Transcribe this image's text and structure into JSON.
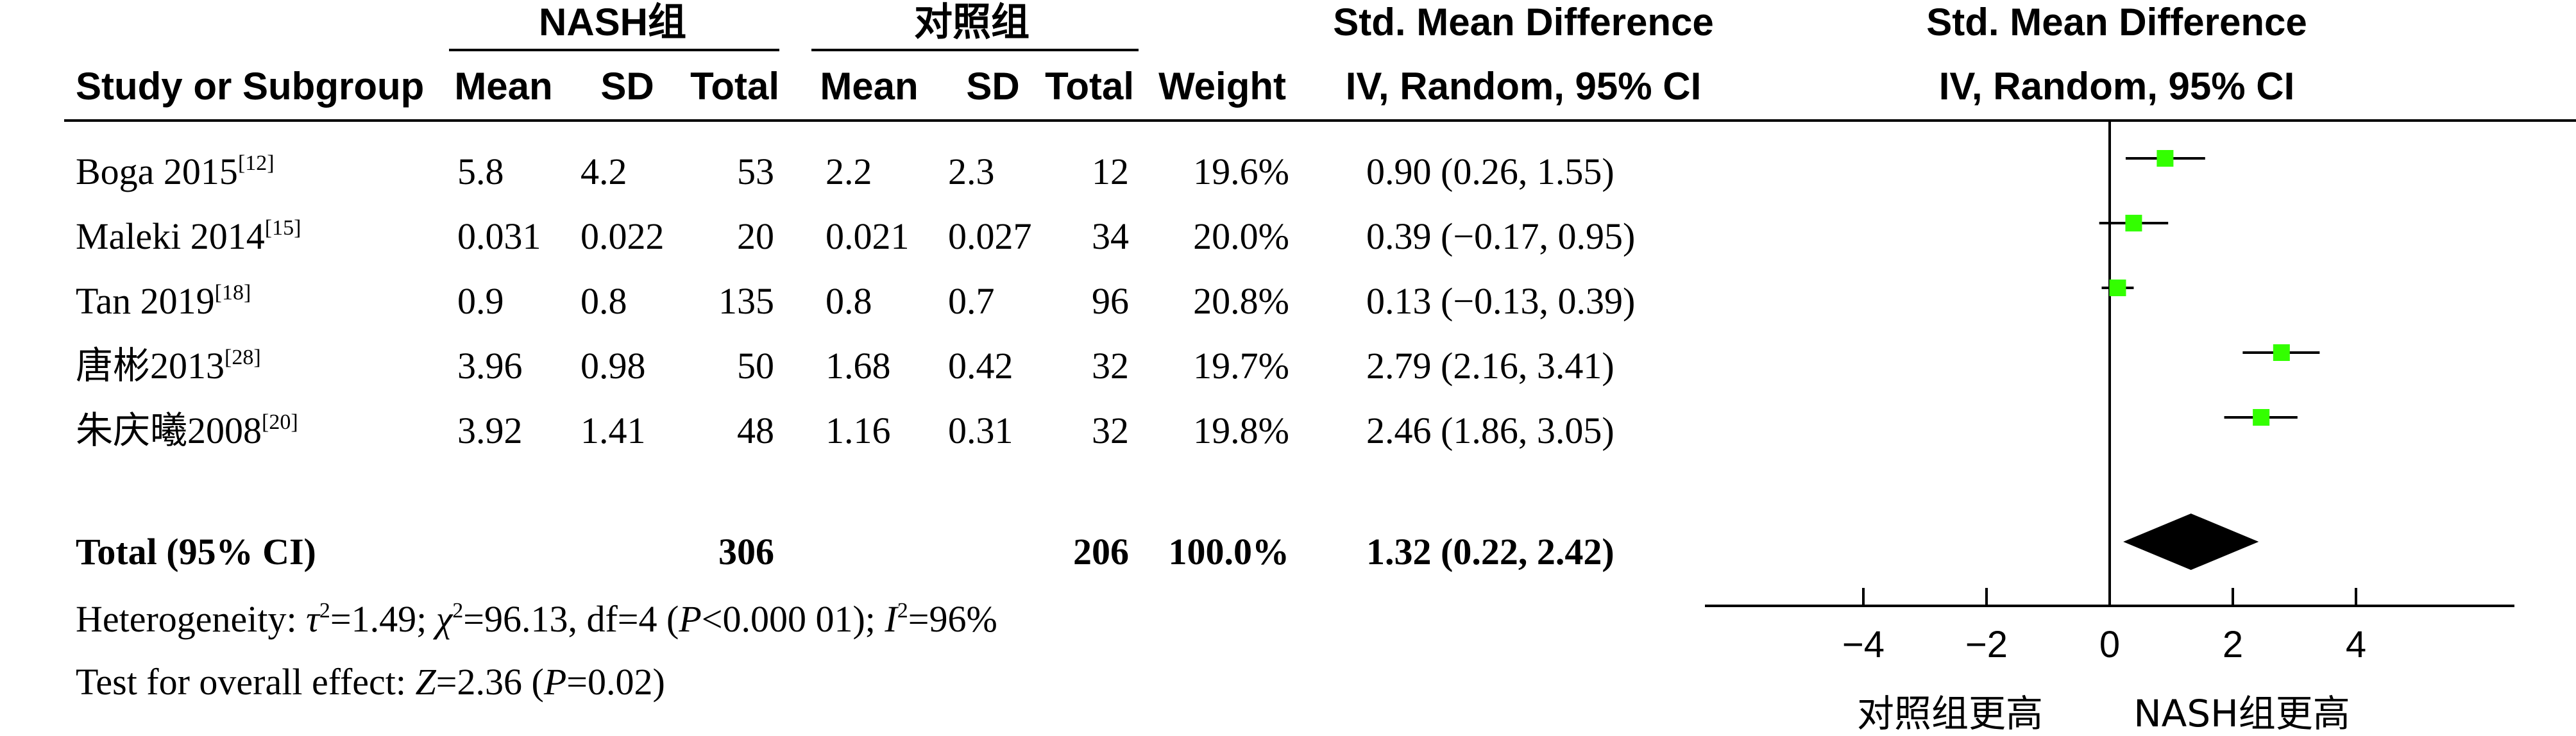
{
  "headers": {
    "group1": "NASH组",
    "group2": "对照组",
    "smd_title": "Std. Mean Difference",
    "study": "Study or Subgroup",
    "mean1": "Mean",
    "sd1": "SD",
    "total1": "Total",
    "mean2": "Mean",
    "sd2": "SD",
    "total2": "Total",
    "weight": "Weight",
    "smd_method": "IV, Random, 95% CI",
    "plot_title": "Std. Mean Difference",
    "plot_method": "IV, Random, 95% CI"
  },
  "studies": [
    {
      "name": "Boga 2015",
      "ref": "[12]",
      "mean1": "5.8",
      "sd1": "4.2",
      "total1": "53",
      "mean2": "2.2",
      "sd2": "2.3",
      "total2": "12",
      "weight": "19.6%",
      "ci_text": "0.90 (0.26, 1.55)"
    },
    {
      "name": "Maleki 2014",
      "ref": "[15]",
      "mean1": "0.031",
      "sd1": "0.022",
      "total1": "20",
      "mean2": "0.021",
      "sd2": "0.027",
      "total2": "34",
      "weight": "20.0%",
      "ci_text": "0.39 (−0.17, 0.95)"
    },
    {
      "name": "Tan 2019",
      "ref": "[18]",
      "mean1": "0.9",
      "sd1": "0.8",
      "total1": "135",
      "mean2": "0.8",
      "sd2": "0.7",
      "total2": "96",
      "weight": "20.8%",
      "ci_text": "0.13 (−0.13, 0.39)"
    },
    {
      "name": "唐彬2013",
      "ref": "[28]",
      "mean1": "3.96",
      "sd1": "0.98",
      "total1": "50",
      "mean2": "1.68",
      "sd2": "0.42",
      "total2": "32",
      "weight": "19.7%",
      "ci_text": "2.79 (2.16, 3.41)"
    },
    {
      "name": "朱庆曦2008",
      "ref": "[20]",
      "mean1": "3.92",
      "sd1": "1.41",
      "total1": "48",
      "mean2": "1.16",
      "sd2": "0.31",
      "total2": "32",
      "weight": "19.8%",
      "ci_text": "2.46 (1.86, 3.05)"
    }
  ],
  "total_row": {
    "label": "Total (95% CI)",
    "total1": "306",
    "total2": "206",
    "weight": "100.0%",
    "ci_text": "1.32 (0.22, 2.42)"
  },
  "heterogeneity": {
    "prefix": "Heterogeneity: ",
    "tau_sym": "τ",
    "tau_val": "=1.49; ",
    "chi_sym": "χ",
    "chi_val": "=96.13, df=4 (",
    "p_sym": "P",
    "p_val": "<0.000 01); ",
    "i_sym": "I",
    "i_val": "=96%"
  },
  "overall_effect": {
    "prefix": "Test for overall effect: ",
    "z_sym": "Z",
    "z_val": "=2.36 (",
    "p_sym": "P",
    "p_val": "=0.02)"
  },
  "favours": {
    "left": "对照组更高",
    "right": "NASH组更高"
  },
  "marker_color": "#33ff00",
  "chart_data": {
    "type": "forest",
    "x_range": [
      -4,
      4
    ],
    "x_ticks": [
      -4,
      -2,
      0,
      2,
      4
    ],
    "tick_labels": [
      "−4",
      "−2",
      "0",
      "2",
      "4"
    ],
    "studies": [
      {
        "name": "Boga 2015",
        "smd": 0.9,
        "lo": 0.26,
        "hi": 1.55,
        "weight": 19.6
      },
      {
        "name": "Maleki 2014",
        "smd": 0.39,
        "lo": -0.17,
        "hi": 0.95,
        "weight": 20.0
      },
      {
        "name": "Tan 2019",
        "smd": 0.13,
        "lo": -0.13,
        "hi": 0.39,
        "weight": 20.8
      },
      {
        "name": "唐彬2013",
        "smd": 2.79,
        "lo": 2.16,
        "hi": 3.41,
        "weight": 19.7
      },
      {
        "name": "朱庆曦2008",
        "smd": 2.46,
        "lo": 1.86,
        "hi": 3.05,
        "weight": 19.8
      }
    ],
    "pooled": {
      "smd": 1.32,
      "lo": 0.22,
      "hi": 2.42
    }
  }
}
